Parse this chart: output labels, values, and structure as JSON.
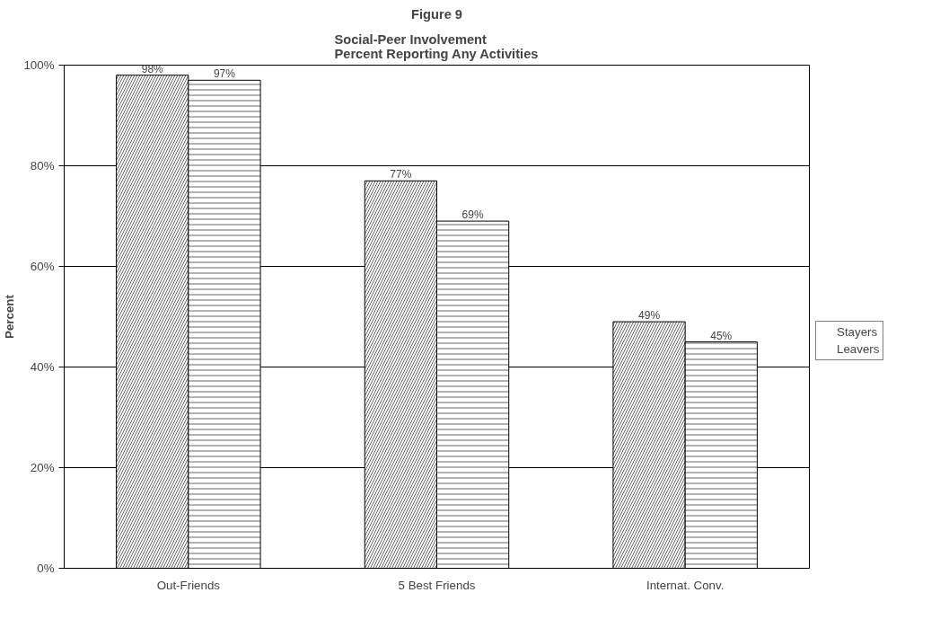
{
  "chart_data": {
    "type": "bar",
    "title": "Figure 9",
    "subtitle": "Social-Peer Involvement\nPercent Reporting Any Activities",
    "ylabel": "Percent",
    "categories": [
      "Out-Friends",
      "5 Best Friends",
      "Internat. Conv."
    ],
    "series": [
      {
        "name": "Stayers",
        "color": "#000000",
        "values": [
          98,
          77,
          49
        ],
        "value_labels": [
          "98%",
          "77%",
          "49%"
        ]
      },
      {
        "name": "Leavers",
        "color": "#000000",
        "values": [
          97,
          69,
          45
        ],
        "value_labels": [
          "97%",
          "69%",
          "45%"
        ]
      }
    ],
    "ylim": [
      0,
      100
    ],
    "yticks": [
      {
        "value": 0,
        "label": "0%"
      },
      {
        "value": 20,
        "label": "20%"
      },
      {
        "value": 40,
        "label": "40%"
      },
      {
        "value": 60,
        "label": "60%"
      },
      {
        "value": 80,
        "label": "80%"
      },
      {
        "value": 100,
        "label": "100%"
      }
    ],
    "grid": "y",
    "legend": "right"
  }
}
